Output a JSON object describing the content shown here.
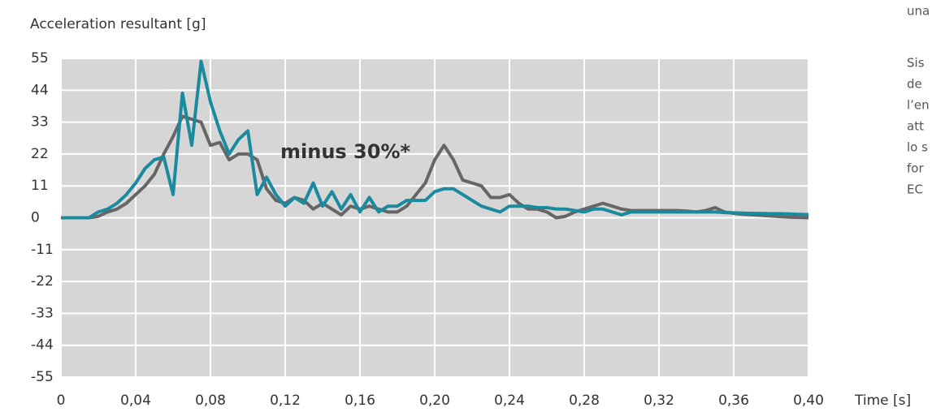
{
  "chart_data": {
    "type": "line",
    "y_label": "Acceleration resultant [g]",
    "x_label": "Time [s]",
    "annotation": "minus 30%*",
    "side_text": [
      "una",
      "Sis",
      "de",
      "l’en",
      "att",
      "lo s",
      "for",
      "EC"
    ],
    "xlim": [
      0,
      0.4
    ],
    "ylim": [
      -55,
      55
    ],
    "xticks": [
      {
        "value": 0,
        "label": "0"
      },
      {
        "value": 0.04,
        "label": "0,04"
      },
      {
        "value": 0.08,
        "label": "0,08"
      },
      {
        "value": 0.12,
        "label": "0,12"
      },
      {
        "value": 0.16,
        "label": "0,16"
      },
      {
        "value": 0.2,
        "label": "0,20"
      },
      {
        "value": 0.24,
        "label": "0,24"
      },
      {
        "value": 0.28,
        "label": "0,28"
      },
      {
        "value": 0.32,
        "label": "0,32"
      },
      {
        "value": 0.36,
        "label": "0,36"
      },
      {
        "value": 0.4,
        "label": "0,40"
      }
    ],
    "yticks": [
      55,
      44,
      33,
      22,
      11,
      0,
      -11,
      -22,
      -33,
      -44,
      -55
    ],
    "grid": true,
    "x": [
      0,
      0.005,
      0.01,
      0.015,
      0.02,
      0.025,
      0.03,
      0.035,
      0.04,
      0.045,
      0.05,
      0.055,
      0.06,
      0.065,
      0.07,
      0.075,
      0.08,
      0.085,
      0.09,
      0.095,
      0.1,
      0.105,
      0.11,
      0.115,
      0.12,
      0.125,
      0.13,
      0.135,
      0.14,
      0.145,
      0.15,
      0.155,
      0.16,
      0.165,
      0.17,
      0.175,
      0.18,
      0.185,
      0.19,
      0.195,
      0.2,
      0.205,
      0.21,
      0.215,
      0.22,
      0.225,
      0.23,
      0.235,
      0.24,
      0.245,
      0.25,
      0.255,
      0.26,
      0.265,
      0.27,
      0.275,
      0.28,
      0.285,
      0.29,
      0.295,
      0.3,
      0.305,
      0.31,
      0.315,
      0.32,
      0.325,
      0.33,
      0.335,
      0.34,
      0.345,
      0.35,
      0.355,
      0.36,
      0.365,
      0.37,
      0.375,
      0.38,
      0.385,
      0.39,
      0.395,
      0.4
    ],
    "series": [
      {
        "color": "#666666",
        "values": [
          0,
          0,
          0,
          0,
          0.5,
          2,
          3,
          5,
          8,
          11,
          15,
          22,
          28,
          35,
          34,
          33,
          25,
          26,
          20,
          22,
          22,
          20,
          10,
          6,
          5,
          7,
          6,
          3,
          5,
          3,
          1,
          4,
          3,
          4,
          3,
          2,
          2,
          4,
          8,
          12,
          20,
          25,
          20,
          13,
          12,
          11,
          7,
          7,
          8,
          5,
          3,
          3,
          2,
          0,
          0.5,
          2,
          3,
          4,
          5,
          4,
          3,
          2.5,
          2.5,
          2.5,
          2.5,
          2.5,
          2.5,
          2.3,
          2,
          2.5,
          3.5,
          2,
          1.5,
          1.2,
          1,
          0.8,
          0.6,
          0.4,
          0.2,
          0.1,
          0
        ]
      },
      {
        "color": "#1a8a9e",
        "values": [
          0,
          0,
          0,
          0,
          2,
          3,
          5,
          8,
          12,
          17,
          20,
          21,
          8,
          43,
          25,
          54,
          40,
          30,
          22,
          27,
          30,
          8,
          14,
          8,
          4,
          7,
          5,
          12,
          4,
          9,
          3,
          8,
          2,
          7,
          2,
          4,
          4,
          6,
          6,
          6,
          9,
          10,
          10,
          8,
          6,
          4,
          3,
          2,
          4,
          4,
          4,
          3.5,
          3.5,
          3,
          3,
          2.5,
          2,
          3,
          3,
          2,
          1,
          2,
          2,
          2,
          2,
          2,
          2,
          2,
          2,
          2,
          2,
          1.8,
          1.7,
          1.6,
          1.5,
          1.5,
          1.4,
          1.4,
          1.3,
          1.2,
          1.1
        ]
      }
    ]
  }
}
